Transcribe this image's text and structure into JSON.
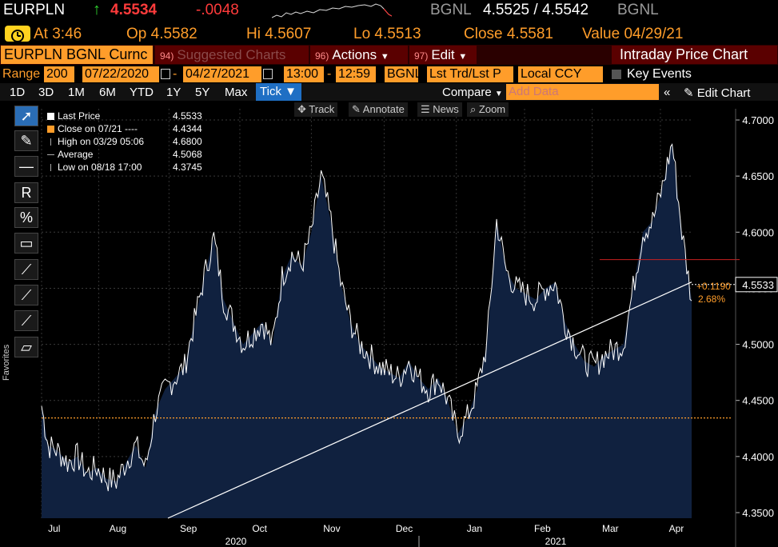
{
  "header": {
    "ticker": "EURPLN",
    "last": "4.5534",
    "change": "-.0048",
    "source_left": "BGNL",
    "bid_ask": "4.5525 / 4.5542",
    "source_right": "BGNL"
  },
  "quote": {
    "time_label": "At 3:46",
    "open_label": "Op 4.5582",
    "high_label": "Hi 4.5607",
    "low_label": "Lo 4.5513",
    "close_label": "Close 4.5581",
    "value_label": "Value 04/29/21"
  },
  "title_bar": {
    "security": "EURPLN BGNL Curnc",
    "suggested_num": "94)",
    "suggested": "Suggested Charts",
    "actions_num": "96)",
    "actions": "Actions",
    "edit_num": "97)",
    "edit": "Edit",
    "chart_name": "Intraday Price Chart"
  },
  "range_bar": {
    "range_label": "Range",
    "bars": "200",
    "start_date": "07/22/2020",
    "end_date": "04/27/2021",
    "start_time": "13:00",
    "end_time": "12:59",
    "source": "BGNL",
    "field": "Lst Trd/Lst P",
    "currency": "Local CCY",
    "key_events": "Key Events"
  },
  "period_bar": {
    "periods": [
      "1D",
      "3D",
      "1M",
      "6M",
      "YTD",
      "1Y",
      "5Y",
      "Max"
    ],
    "tick": "Tick ▼",
    "compare": "Compare",
    "add_data": "Add Data",
    "edit_chart": "Edit Chart"
  },
  "annotation_bar": {
    "track": "Track",
    "annotate": "Annotate",
    "news": "News",
    "zoom": "Zoom"
  },
  "favorites": "Favorites",
  "colors": {
    "accent": "#ff9d2a",
    "area_fill": "#10213f",
    "price_line": "#ffffff",
    "close_line": "#ff9d2a",
    "resistance": "#c82020",
    "trend": "#ffffff"
  },
  "chart_data": {
    "type": "line",
    "legend": [
      {
        "label": "Last Price",
        "value": "4.5533",
        "color": "#ffffff"
      },
      {
        "label": "Close on 07/21 ---- ",
        "value": "4.4344",
        "color": "#ff9d2a"
      },
      {
        "label": "High on 03/29 05:06",
        "value": "4.6800",
        "color": ""
      },
      {
        "label": "Average",
        "value": "4.5068",
        "color": ""
      },
      {
        "label": "Low on 08/18 17:00",
        "value": "4.3745",
        "color": ""
      }
    ],
    "y_ticks": [
      "4.3500",
      "4.4000",
      "4.4500",
      "4.5000",
      "4.5500",
      "4.6000",
      "4.6500",
      "4.7000"
    ],
    "ylim": [
      4.345,
      4.71
    ],
    "x_months": [
      "Jul",
      "Aug",
      "Sep",
      "Oct",
      "Nov",
      "Dec",
      "Jan",
      "Feb",
      "Mar",
      "Apr"
    ],
    "x_years": [
      "2020",
      "2021"
    ],
    "last_label": "4.5533",
    "change_label": "+0.1190",
    "change_pct": "2.68%",
    "close_ref": 4.4344,
    "resistance": 4.5755,
    "trendline": [
      4.345,
      4.5555
    ],
    "x": [
      0,
      2,
      5,
      8,
      11,
      14,
      17,
      20,
      23,
      26,
      29,
      32,
      35,
      38,
      41,
      44,
      47,
      50,
      53,
      56,
      59,
      62,
      65,
      68,
      71,
      74,
      77,
      80,
      83,
      86,
      89,
      92,
      95,
      98,
      101,
      104,
      107,
      110,
      113,
      116,
      119,
      122,
      125,
      128,
      131,
      134,
      137,
      140,
      143,
      146,
      149,
      152,
      155,
      158,
      161,
      164,
      167,
      170,
      173,
      176,
      179,
      182,
      185,
      188,
      191,
      194,
      197,
      200
    ],
    "values": [
      4.445,
      4.41,
      4.405,
      4.395,
      4.4,
      4.385,
      4.39,
      4.38,
      4.378,
      4.395,
      4.41,
      4.39,
      4.44,
      4.46,
      4.47,
      4.48,
      4.52,
      4.56,
      4.595,
      4.54,
      4.52,
      4.5,
      4.51,
      4.52,
      4.5,
      4.56,
      4.58,
      4.57,
      4.6,
      4.65,
      4.61,
      4.555,
      4.52,
      4.5,
      4.49,
      4.48,
      4.475,
      4.47,
      4.485,
      4.47,
      4.46,
      4.47,
      4.45,
      4.42,
      4.435,
      4.46,
      4.5,
      4.61,
      4.565,
      4.55,
      4.545,
      4.54,
      4.55,
      4.555,
      4.52,
      4.5,
      4.485,
      4.48,
      4.49,
      4.495,
      4.5,
      4.55,
      4.6,
      4.61,
      4.64,
      4.68,
      4.6,
      4.54
    ]
  }
}
